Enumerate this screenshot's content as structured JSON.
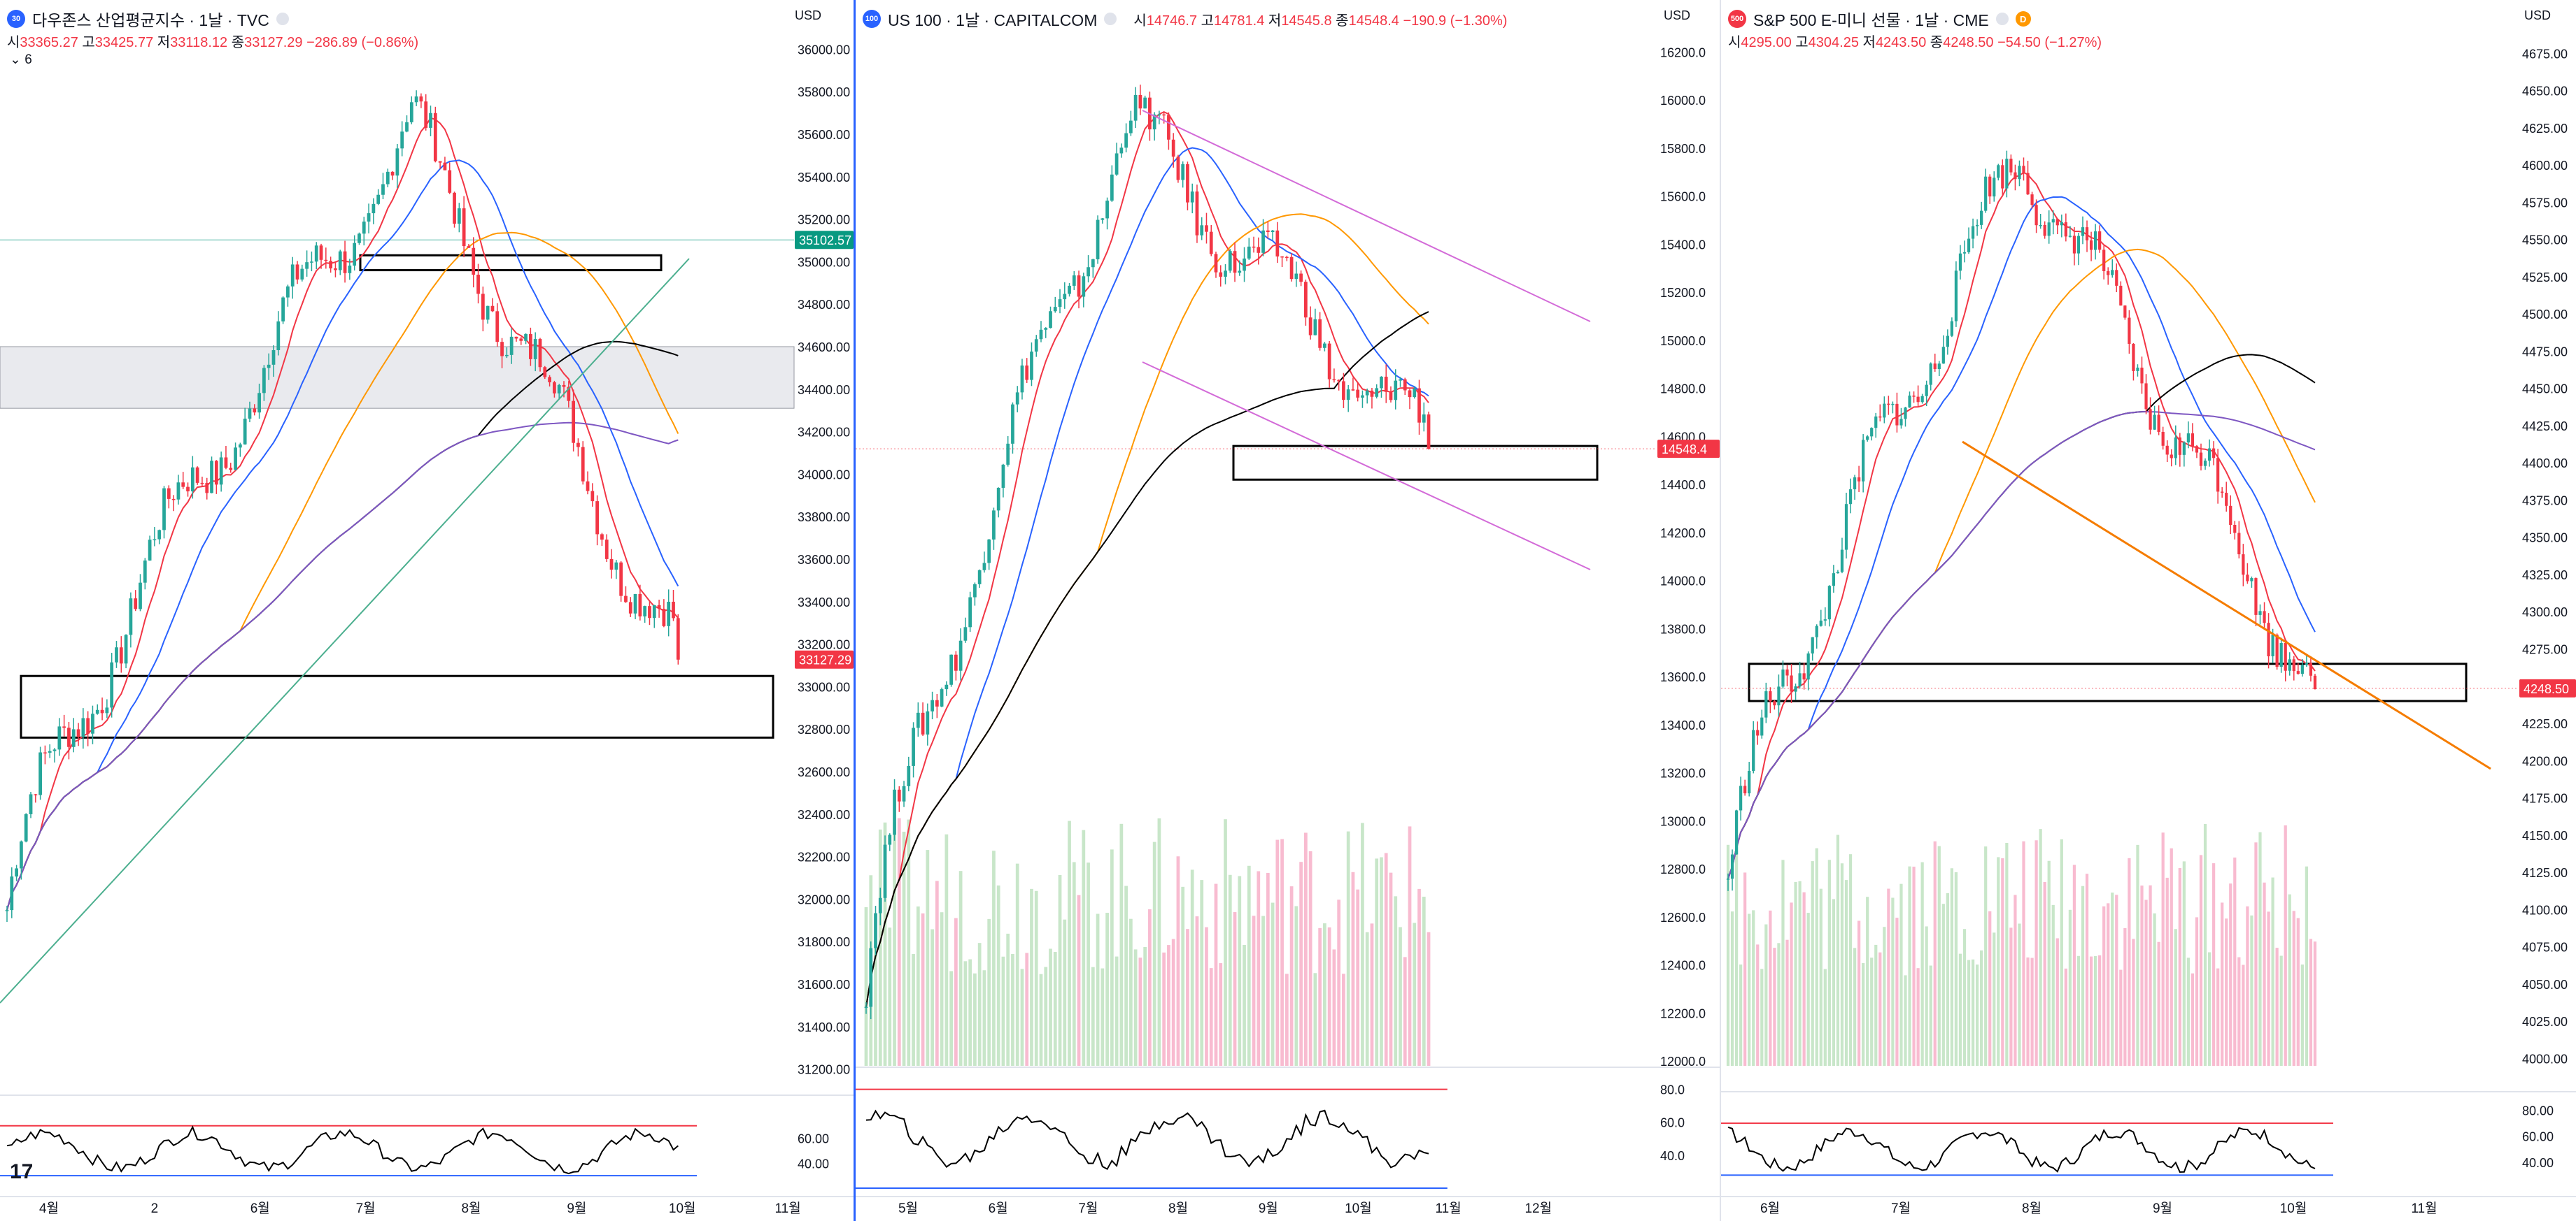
{
  "colors": {
    "up": "#26a69a",
    "down": "#f23645",
    "vol_up": "#c8e6c9",
    "vol_down": "#f8bbd0",
    "ma_fast": "#f23645",
    "ma_mid": "#2962ff",
    "ma_orange": "#ff9800",
    "ma_black": "#000000",
    "ma_purple": "#7e57c2",
    "rsi": "#000000",
    "rsi_upper": "#f23645",
    "rsi_lower": "#2962ff",
    "trend_green": "#4caf8f",
    "trend_purple": "#d36bd8",
    "trend_orange": "#f57c00",
    "accent": "#2962ff"
  },
  "chart_data": [
    {
      "type": "candlestick",
      "title": "다우존스 산업평균지수 · 1날 · TVC",
      "logo": "30",
      "ohlc": {
        "o_label": "시",
        "o": "33365.27",
        "h_label": "고",
        "h": "33425.77",
        "l_label": "저",
        "l": "33118.12",
        "c_label": "종",
        "c": "33127.29",
        "change": "−286.89 (−0.86%)"
      },
      "indicator_toggle": "6",
      "currency": "USD",
      "y_ticks": [
        "36000.00",
        "35800.00",
        "35600.00",
        "35400.00",
        "35200.00",
        "35000.00",
        "34800.00",
        "34600.00",
        "34400.00",
        "34200.00",
        "34000.00",
        "33800.00",
        "33600.00",
        "33400.00",
        "33200.00",
        "33000.00",
        "32800.00",
        "32600.00",
        "32400.00",
        "32200.00",
        "32000.00",
        "31800.00",
        "31600.00",
        "31400.00",
        "31200.00"
      ],
      "y_range": [
        31100,
        36100
      ],
      "x_ticks": [
        "4월",
        "2",
        "6월",
        "7월",
        "8월",
        "9월",
        "10월",
        "11월"
      ],
      "price_badges": [
        {
          "label": "35102.57",
          "value": 35102.57,
          "color": "#089981"
        },
        {
          "label": "33127.29",
          "value": 33127.29,
          "color": "#f23645"
        }
      ],
      "rsi_ticks": [
        "60.00",
        "40.00"
      ],
      "rsi_levels": [
        70,
        30
      ],
      "candles": {
        "n": 142,
        "start": 31950,
        "end": 33127,
        "peak": 35630,
        "peak_idx": 85
      },
      "zones": [
        {
          "from": 34310,
          "to": 34600,
          "type": "band"
        },
        {
          "from": 32760,
          "to": 33050,
          "type": "box"
        },
        {
          "from": 34960,
          "to": 35030,
          "type": "box"
        }
      ],
      "hline": 35102.57
    },
    {
      "type": "candlestick",
      "title": "US 100 · 1날 · CAPITALCOM",
      "logo": "100",
      "ohlc": {
        "o_label": "시",
        "o": "14746.7",
        "h_label": "고",
        "h": "14781.4",
        "l_label": "저",
        "l": "14545.8",
        "c_label": "종",
        "c": "14548.4",
        "change": "−190.9 (−1.30%)"
      },
      "currency": "USD",
      "y_ticks": [
        "16200.0",
        "16000.0",
        "15800.0",
        "15600.0",
        "15400.0",
        "15200.0",
        "15000.0",
        "14800.0",
        "14600.0",
        "14400.0",
        "14200.0",
        "14000.0",
        "13800.0",
        "13600.0",
        "13400.0",
        "13200.0",
        "13000.0",
        "12800.0",
        "12600.0",
        "12400.0",
        "12200.0",
        "12000.0"
      ],
      "y_range": [
        11980,
        16300
      ],
      "x_ticks": [
        "5월",
        "6월",
        "7월",
        "8월",
        "9월",
        "10월",
        "11월",
        "12월"
      ],
      "price_badges": [
        {
          "label": "14548.4",
          "value": 14548.4,
          "color": "#f23645"
        }
      ],
      "rsi_ticks": [
        "80.0",
        "60.0",
        "40.0"
      ],
      "rsi_levels": [
        80,
        20
      ],
      "candles": {
        "n": 120,
        "start": 12300,
        "end": 14548,
        "peak": 15900,
        "peak_idx": 55
      },
      "zones": [
        {
          "from": 14420,
          "to": 14560,
          "type": "box"
        }
      ],
      "hline": 14548.4
    },
    {
      "type": "candlestick",
      "title": "S&P 500 E-미니 선물 · 1날 · CME",
      "logo": "500",
      "delay_badge": "D",
      "ohlc": {
        "o_label": "시",
        "o": "4295.00",
        "h_label": "고",
        "h": "4304.25",
        "l_label": "저",
        "l": "4243.50",
        "c_label": "종",
        "c": "4248.50",
        "change": "−54.50 (−1.27%)"
      },
      "currency": "USD",
      "y_ticks": [
        "4675.00",
        "4650.00",
        "4625.00",
        "4600.00",
        "4575.00",
        "4550.00",
        "4525.00",
        "4500.00",
        "4475.00",
        "4450.00",
        "4425.00",
        "4400.00",
        "4375.00",
        "4350.00",
        "4325.00",
        "4300.00",
        "4275.00",
        "4250.00",
        "4225.00",
        "4200.00",
        "4175.00",
        "4150.00",
        "4125.00",
        "4100.00",
        "4075.00",
        "4050.00",
        "4025.00",
        "4000.00"
      ],
      "y_range": [
        3995,
        4685
      ],
      "x_ticks": [
        "6월",
        "7월",
        "8월",
        "9월",
        "10월",
        "11월"
      ],
      "price_badges": [
        {
          "label": "4248.50",
          "value": 4248.5,
          "color": "#f23645"
        }
      ],
      "rsi_ticks": [
        "80.00",
        "60.00",
        "40.00"
      ],
      "rsi_levels": [
        70,
        30
      ],
      "candles": {
        "n": 140,
        "start": 4120,
        "end": 4248,
        "peak": 4610,
        "peak_idx": 70
      },
      "zones": [
        {
          "from": 4240,
          "to": 4265,
          "type": "box"
        }
      ],
      "hline": 4248.5
    }
  ]
}
